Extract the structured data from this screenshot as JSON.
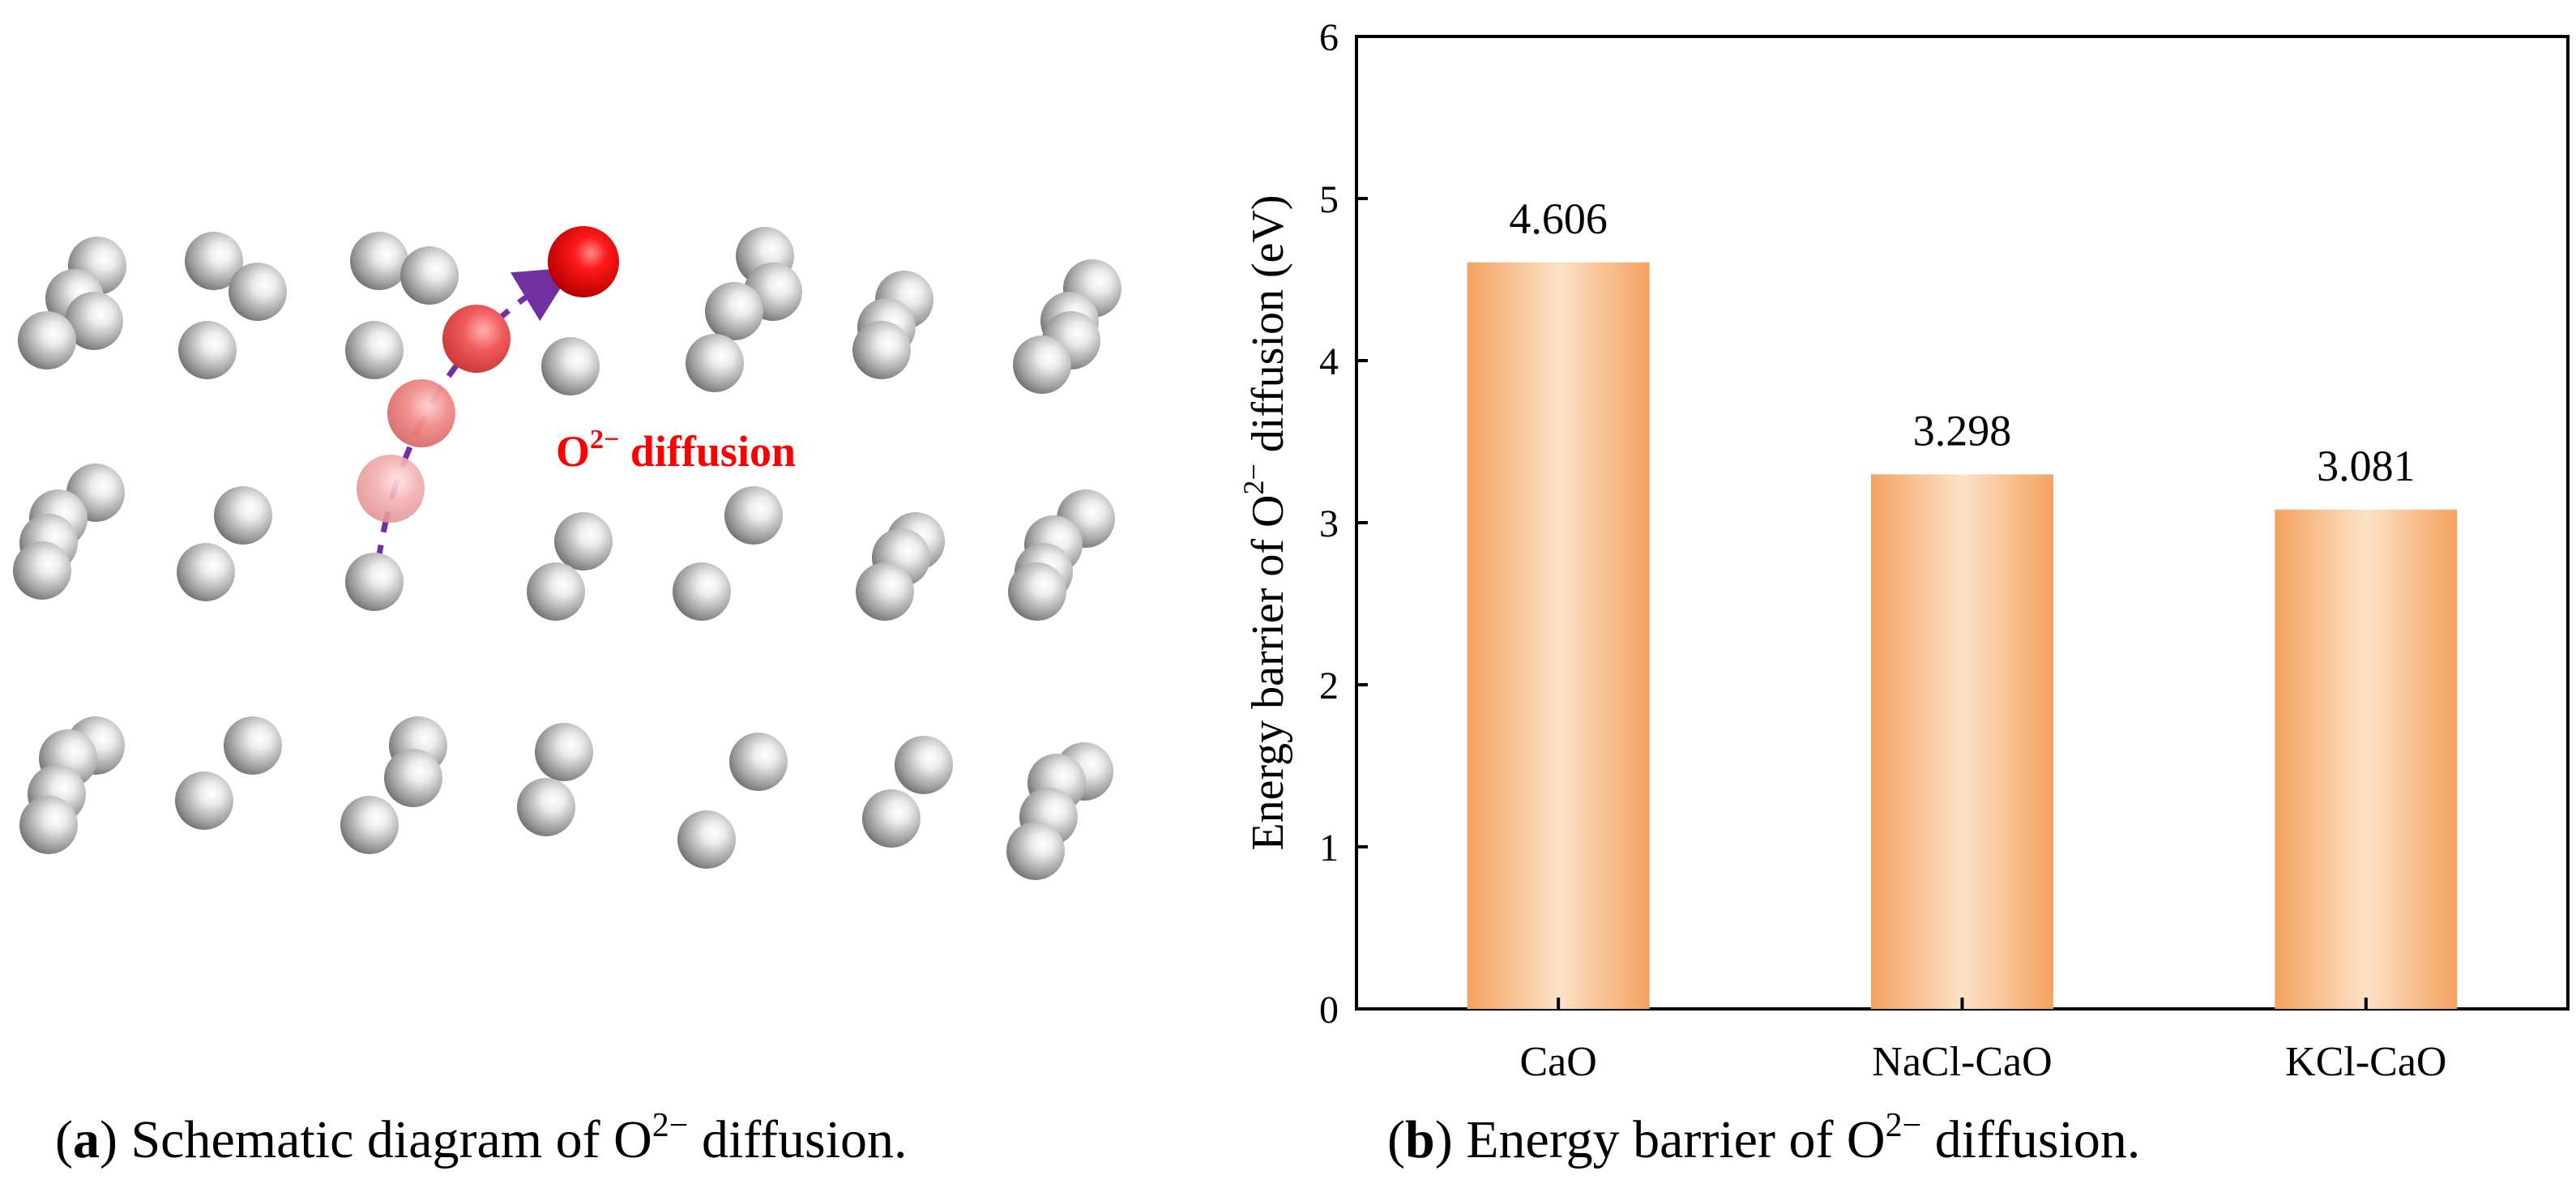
{
  "colors": {
    "atom_gray": "#8a8a8a",
    "oxygen_red": "#e00000",
    "arrow_purple": "#7030a0",
    "label_red": "#ff0000",
    "bar_edge": "#f4a260",
    "bar_center": "#fde2c8"
  },
  "panel_a": {
    "diffusion_label_base": "O",
    "diffusion_label_sup": "2−",
    "diffusion_label_rest": " diffusion",
    "caption_paren_open": "(",
    "caption_letter": "a",
    "caption_paren_close": ")",
    "caption_text_before": " Schematic diagram of O",
    "caption_sup": "2−",
    "caption_text_after": " diffusion."
  },
  "panel_b": {
    "caption_paren_open": "(",
    "caption_letter": "b",
    "caption_paren_close": ")",
    "caption_text_before": " Energy barrier of O",
    "caption_sup": "2−",
    "caption_text_after": " diffusion."
  },
  "chart_data": {
    "type": "bar",
    "title": "",
    "categories": [
      "CaO",
      "NaCl-CaO",
      "KCl-CaO"
    ],
    "values": [
      4.606,
      3.298,
      3.081
    ],
    "value_labels": [
      "4.606",
      "3.298",
      "3.081"
    ],
    "xlabel": "",
    "ylabel_before": "Energy barrier of O",
    "ylabel_sup": "2−",
    "ylabel_after": " diffusion (eV)",
    "ylim": [
      0,
      6
    ],
    "yticks": [
      "0",
      "1",
      "2",
      "3",
      "4",
      "5",
      "6"
    ],
    "grid": false
  }
}
